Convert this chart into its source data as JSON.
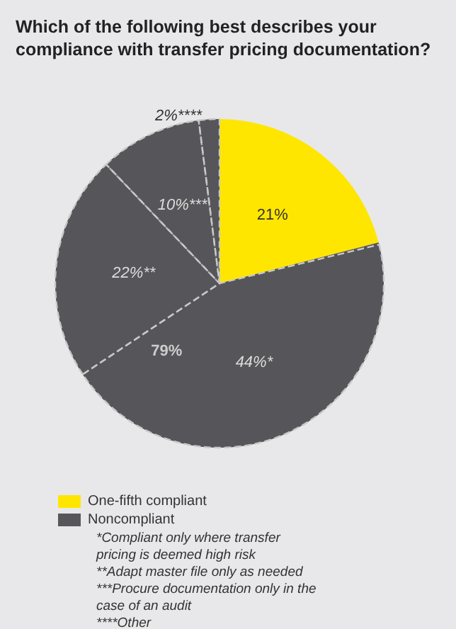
{
  "chart_data": [
    {
      "type": "pie",
      "title": "Which of the following best describes your compliance with transfer pricing documentation?",
      "categories": [
        "One-fifth compliant",
        "Noncompliant"
      ],
      "values": [
        21,
        79
      ],
      "value_labels": [
        "21%",
        "79%"
      ],
      "colors": [
        "#ffe600",
        "#57575b"
      ],
      "legend": "bottom left",
      "annotations": [
        "*Compliant only where transfer pricing is deemed high risk",
        "**Adapt master file only as needed",
        "***Procure documentation only in the case of an audit",
        "****Other"
      ]
    },
    {
      "type": "pie",
      "categories": [
        null,
        null,
        null,
        null
      ],
      "values": [
        44,
        22,
        10,
        2
      ],
      "value_labels": [
        "44%*",
        "22%**",
        "10%***",
        "2%****"
      ],
      "colors": [
        "#57575b",
        "#57575b",
        "#57575b",
        "#57575b"
      ],
      "line_style": "dashed"
    }
  ]
}
